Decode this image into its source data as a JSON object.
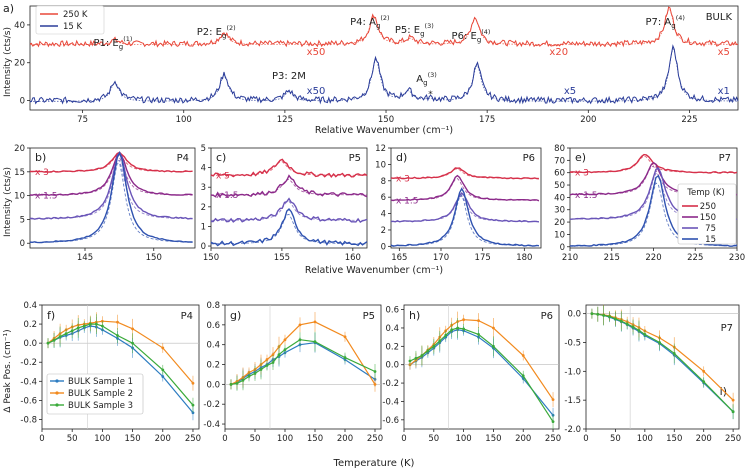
{
  "colors": {
    "red": "#e8483a",
    "blue": "#2b3d9a",
    "c250": "#d6304a",
    "c150": "#8c2a8a",
    "c75": "#6a55b8",
    "c15": "#2f52b0",
    "s1": "#2c7cc1",
    "s2": "#f28a1e",
    "s3": "#3aaa3a"
  },
  "chart_data": [
    {
      "id": "a",
      "type": "line",
      "panel_label": "a)",
      "title": "BULK",
      "xlabel": "Relative Wavenumber (cm⁻¹)",
      "ylabel": "Intensity (cts/s)",
      "xlim": [
        62,
        237
      ],
      "ylim": [
        -5,
        50
      ],
      "xticks": [
        "75",
        "100",
        "125",
        "150",
        "175",
        "200",
        "225"
      ],
      "yticks": [
        "0",
        "20",
        "40"
      ],
      "legend": [
        "250 K",
        "15 K"
      ],
      "peaks": [
        {
          "name": "P1",
          "mode": "E",
          "sub": "g",
          "sup": "(1)",
          "x": 83
        },
        {
          "name": "P2",
          "mode": "E",
          "sub": "g",
          "sup": "(2)",
          "x": 110
        },
        {
          "name": "P3",
          "mode": "2M",
          "x": 126
        },
        {
          "name": "P4",
          "mode": "A",
          "sub": "g",
          "sup": "(2)",
          "x": 147
        },
        {
          "name": "P5",
          "mode": "E",
          "sub": "g",
          "sup": "(3)",
          "x": 156
        },
        {
          "name": "A",
          "mode": "A",
          "sub": "g",
          "sup": "(3)",
          "x": 161
        },
        {
          "name": "P6",
          "mode": "E",
          "sub": "g",
          "sup": "(4)",
          "x": 172
        },
        {
          "name": "P7",
          "mode": "A",
          "sub": "g",
          "sup": "(4)",
          "x": 220
        }
      ],
      "asterisk": "*",
      "scale_labels_red": [
        "x50",
        "x20",
        "x5"
      ],
      "scale_labels_blue": [
        "x50",
        "x5",
        "x1"
      ],
      "series": [
        {
          "name": "250 K",
          "offset": 30,
          "peaks": [
            [
              83,
              2
            ],
            [
              110,
              6
            ],
            [
              147,
              15
            ],
            [
              156,
              3
            ],
            [
              172,
              14
            ],
            [
              220,
              19
            ]
          ]
        },
        {
          "name": "15 K",
          "offset": 0,
          "peaks": [
            [
              83,
              10
            ],
            [
              110,
              14
            ],
            [
              126,
              5
            ],
            [
              147.5,
              22
            ],
            [
              155.5,
              5
            ],
            [
              161,
              1
            ],
            [
              172.5,
              19
            ],
            [
              221,
              28
            ]
          ]
        }
      ]
    },
    {
      "id": "b",
      "type": "line",
      "panel_label": "b)",
      "peak": "P4",
      "xlim": [
        141,
        153
      ],
      "ylim": [
        -1,
        20
      ],
      "xticks": [
        "145",
        "150"
      ],
      "yticks": [
        "0",
        "5",
        "10",
        "15",
        "20"
      ],
      "scales": [
        "x 3",
        "x 1.5"
      ],
      "ylabel": "Intensity (cts/s)",
      "series": [
        {
          "T": 250,
          "offset": 15,
          "center": 147.5,
          "height": 4
        },
        {
          "T": 150,
          "offset": 10,
          "center": 147.5,
          "height": 9
        },
        {
          "T": 75,
          "offset": 5,
          "center": 147.5,
          "height": 14
        },
        {
          "T": 15,
          "offset": 0,
          "center": 147.5,
          "height": 19
        }
      ]
    },
    {
      "id": "c",
      "type": "line",
      "panel_label": "c)",
      "peak": "P5",
      "xlim": [
        150,
        161
      ],
      "ylim": [
        -0.1,
        5
      ],
      "xticks": [
        "150",
        "155",
        "160"
      ],
      "yticks": [
        "0",
        "1",
        "2",
        "3",
        "4",
        "5"
      ],
      "scales": [
        "x 5",
        "x 1.5"
      ],
      "series": [
        {
          "T": 250,
          "offset": 3.6,
          "center": 155,
          "height": 0.8
        },
        {
          "T": 150,
          "offset": 2.6,
          "center": 155.5,
          "height": 0.9
        },
        {
          "T": 75,
          "offset": 1.3,
          "center": 155.5,
          "height": 1.1
        },
        {
          "T": 15,
          "offset": 0.1,
          "center": 155.5,
          "height": 1.7
        }
      ]
    },
    {
      "id": "d",
      "type": "line",
      "panel_label": "d)",
      "peak": "P6",
      "xlim": [
        164,
        182
      ],
      "ylim": [
        -0.2,
        12
      ],
      "xticks": [
        "165",
        "170",
        "175",
        "180"
      ],
      "yticks": [
        "0",
        "2",
        "4",
        "6",
        "8",
        "10",
        "12"
      ],
      "scales": [
        "x 3",
        "x 1.5"
      ],
      "series": [
        {
          "T": 250,
          "offset": 8.3,
          "center": 172,
          "height": 1.3
        },
        {
          "T": 150,
          "offset": 5.6,
          "center": 172,
          "height": 3
        },
        {
          "T": 75,
          "offset": 3,
          "center": 172.5,
          "height": 3.5
        },
        {
          "T": 15,
          "offset": 0,
          "center": 172.5,
          "height": 7
        }
      ]
    },
    {
      "id": "e",
      "type": "line",
      "panel_label": "e)",
      "peak": "P7",
      "xlim": [
        210,
        230
      ],
      "ylim": [
        -1,
        80
      ],
      "xticks": [
        "210",
        "215",
        "220",
        "225",
        "230"
      ],
      "yticks": [
        "0",
        "10",
        "20",
        "30",
        "40",
        "50",
        "60",
        "70",
        "80"
      ],
      "scales": [
        "x 3",
        "x 1.5"
      ],
      "legend_title": "Temp (K)",
      "legend": [
        "250",
        "150",
        "75",
        "15"
      ],
      "series": [
        {
          "T": 250,
          "offset": 60,
          "center": 219,
          "height": 15
        },
        {
          "T": 150,
          "offset": 42,
          "center": 220,
          "height": 26
        },
        {
          "T": 75,
          "offset": 22,
          "center": 220.5,
          "height": 42
        },
        {
          "T": 15,
          "offset": 0,
          "center": 220.5,
          "height": 58
        }
      ]
    },
    {
      "id": "f",
      "type": "scatter",
      "panel_label": "f)",
      "peak": "P4",
      "xlim": [
        0,
        260
      ],
      "ylim": [
        -0.9,
        0.4
      ],
      "xticks": [
        "0",
        "50",
        "100",
        "150",
        "200",
        "250"
      ],
      "yticks": [
        "0.4",
        "0.2",
        "0.0",
        "-0.2",
        "-0.4",
        "-0.6",
        "-0.8"
      ],
      "ylabel": "Δ Peak Pos. (cm⁻¹)",
      "legend": [
        "BULK Sample 1",
        "BULK Sample 2",
        "BULK Sample 3"
      ],
      "series": [
        {
          "name": "BULK Sample 1",
          "x": [
            10,
            20,
            30,
            40,
            50,
            60,
            70,
            80,
            90,
            100,
            125,
            150,
            200,
            250
          ],
          "y": [
            0,
            0.03,
            0.06,
            0.08,
            0.1,
            0.13,
            0.16,
            0.18,
            0.17,
            0.14,
            0.05,
            -0.05,
            -0.35,
            -0.73
          ]
        },
        {
          "name": "BULK Sample 2",
          "x": [
            10,
            20,
            30,
            40,
            50,
            60,
            70,
            80,
            90,
            100,
            125,
            150,
            200,
            250
          ],
          "y": [
            0,
            0.05,
            0.1,
            0.14,
            0.17,
            0.19,
            0.2,
            0.21,
            0.22,
            0.23,
            0.22,
            0.15,
            -0.05,
            -0.42
          ]
        },
        {
          "name": "BULK Sample 3",
          "x": [
            10,
            20,
            30,
            40,
            50,
            60,
            70,
            80,
            90,
            100,
            125,
            150,
            200,
            250
          ],
          "y": [
            0,
            0.03,
            0.07,
            0.1,
            0.13,
            0.16,
            0.18,
            0.2,
            0.2,
            0.18,
            0.08,
            0.0,
            -0.28,
            -0.65
          ]
        }
      ]
    },
    {
      "id": "g",
      "type": "scatter",
      "panel_label": "g)",
      "peak": "P5",
      "xlim": [
        0,
        260
      ],
      "ylim": [
        -0.45,
        0.8
      ],
      "xticks": [
        "0",
        "50",
        "100",
        "150",
        "200",
        "250"
      ],
      "yticks": [
        "0.8",
        "0.6",
        "0.4",
        "0.2",
        "0.0",
        "-0.2",
        "-0.4"
      ],
      "series": [
        {
          "name": "BULK Sample 1",
          "x": [
            10,
            20,
            30,
            40,
            50,
            60,
            70,
            80,
            90,
            100,
            125,
            150,
            200,
            250
          ],
          "y": [
            0,
            0.02,
            0.06,
            0.1,
            0.13,
            0.17,
            0.2,
            0.25,
            0.28,
            0.32,
            0.4,
            0.42,
            0.25,
            0.05
          ]
        },
        {
          "name": "BULK Sample 2",
          "x": [
            10,
            20,
            30,
            40,
            50,
            60,
            70,
            80,
            90,
            100,
            125,
            150,
            200,
            250
          ],
          "y": [
            0,
            0.03,
            0.07,
            0.12,
            0.15,
            0.2,
            0.25,
            0.3,
            0.38,
            0.45,
            0.6,
            0.63,
            0.48,
            0.0
          ]
        },
        {
          "name": "BULK Sample 3",
          "x": [
            10,
            20,
            30,
            40,
            50,
            60,
            70,
            80,
            90,
            100,
            125,
            150,
            200,
            250
          ],
          "y": [
            0,
            0.01,
            0.04,
            0.08,
            0.11,
            0.15,
            0.19,
            0.22,
            0.3,
            0.35,
            0.45,
            0.43,
            0.27,
            0.13
          ]
        }
      ]
    },
    {
      "id": "h",
      "type": "scatter",
      "panel_label": "h)",
      "peak": "P6",
      "xlim": [
        0,
        260
      ],
      "ylim": [
        -0.7,
        0.65
      ],
      "xticks": [
        "0",
        "50",
        "100",
        "150",
        "200",
        "250"
      ],
      "yticks": [
        "0.6",
        "0.4",
        "0.2",
        "0.0",
        "-0.2",
        "-0.4",
        "-0.6"
      ],
      "series": [
        {
          "name": "BULK Sample 1",
          "x": [
            10,
            20,
            30,
            40,
            50,
            60,
            70,
            80,
            90,
            100,
            125,
            150,
            200,
            250
          ],
          "y": [
            0,
            0.04,
            0.08,
            0.13,
            0.18,
            0.24,
            0.3,
            0.36,
            0.38,
            0.37,
            0.3,
            0.18,
            -0.15,
            -0.55
          ]
        },
        {
          "name": "BULK Sample 2",
          "x": [
            10,
            20,
            30,
            40,
            50,
            60,
            70,
            80,
            90,
            100,
            125,
            150,
            200,
            250
          ],
          "y": [
            0,
            0.05,
            0.1,
            0.16,
            0.22,
            0.3,
            0.37,
            0.43,
            0.47,
            0.49,
            0.48,
            0.4,
            0.1,
            -0.38
          ]
        },
        {
          "name": "BULK Sample 3",
          "x": [
            10,
            20,
            30,
            40,
            50,
            60,
            70,
            80,
            90,
            100,
            125,
            150,
            200,
            250
          ],
          "y": [
            0.04,
            0.07,
            0.1,
            0.15,
            0.2,
            0.26,
            0.32,
            0.38,
            0.4,
            0.39,
            0.33,
            0.2,
            -0.12,
            -0.62
          ]
        }
      ]
    },
    {
      "id": "i",
      "type": "scatter",
      "panel_label": "i)",
      "peak": "P7",
      "xlim": [
        0,
        260
      ],
      "ylim": [
        -2.0,
        0.15
      ],
      "xticks": [
        "0",
        "50",
        "100",
        "150",
        "200",
        "250"
      ],
      "yticks": [
        "0.0",
        "-0.5",
        "-1.0",
        "-1.5",
        "-2.0"
      ],
      "series": [
        {
          "name": "BULK Sample 1",
          "x": [
            10,
            20,
            30,
            40,
            50,
            60,
            70,
            80,
            90,
            100,
            125,
            150,
            200,
            250
          ],
          "y": [
            0,
            -0.01,
            -0.03,
            -0.06,
            -0.1,
            -0.14,
            -0.19,
            -0.25,
            -0.31,
            -0.38,
            -0.52,
            -0.72,
            -1.2,
            -1.7
          ]
        },
        {
          "name": "BULK Sample 2",
          "x": [
            10,
            20,
            30,
            40,
            50,
            60,
            70,
            80,
            90,
            100,
            125,
            150,
            200,
            250
          ],
          "y": [
            0,
            -0.01,
            -0.02,
            -0.04,
            -0.07,
            -0.1,
            -0.14,
            -0.19,
            -0.24,
            -0.3,
            -0.42,
            -0.58,
            -1.0,
            -1.5
          ]
        },
        {
          "name": "BULK Sample 3",
          "x": [
            10,
            20,
            30,
            40,
            50,
            60,
            70,
            80,
            90,
            100,
            125,
            150,
            200,
            250
          ],
          "y": [
            0,
            -0.01,
            -0.03,
            -0.05,
            -0.09,
            -0.13,
            -0.18,
            -0.23,
            -0.29,
            -0.36,
            -0.5,
            -0.69,
            -1.18,
            -1.7
          ]
        }
      ]
    }
  ],
  "labels": {
    "mid_xlabel": "Relative Wavenumber (cm⁻¹)",
    "bottom_xlabel": "Temperature (K)"
  }
}
